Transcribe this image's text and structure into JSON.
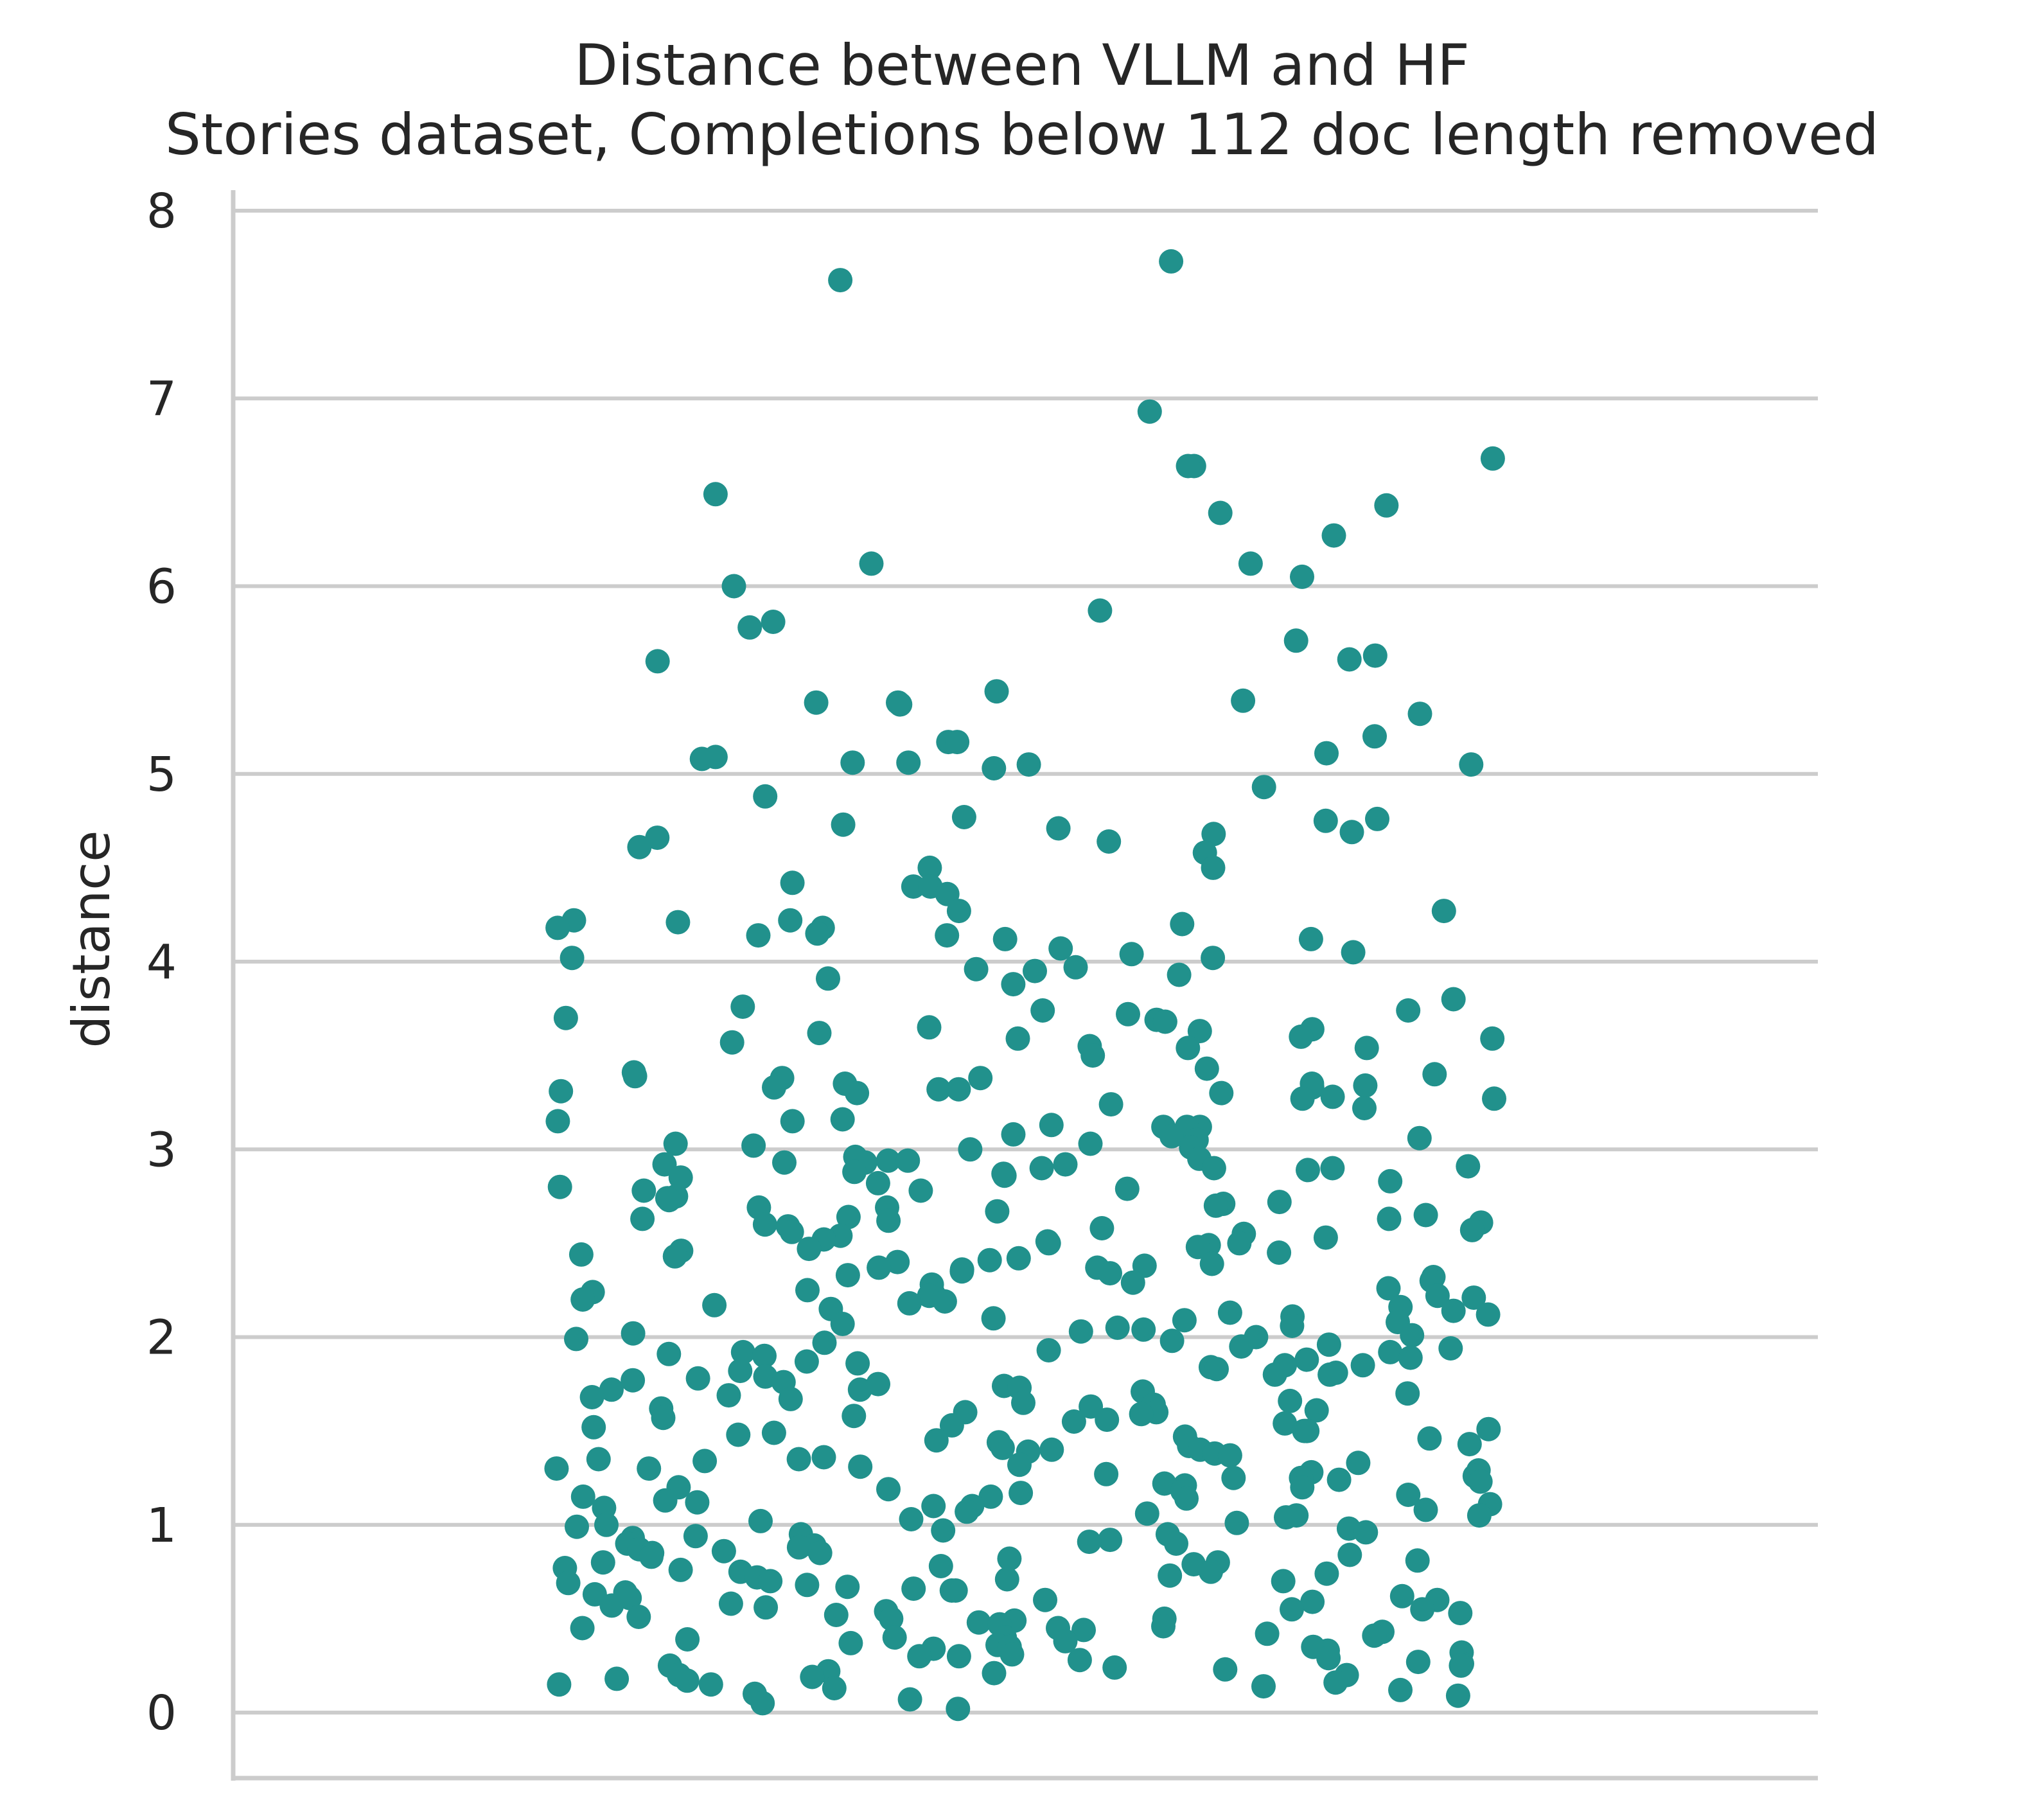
{
  "chart_data": {
    "type": "scatter",
    "subtype": "strip",
    "title": "Distance between VLLM and HF",
    "subtitle": "Stories dataset, Completions below 112 doc length removed",
    "xlabel": "",
    "ylabel": "distance",
    "ylim": [
      -0.35,
      8.1
    ],
    "yticks": [
      "0",
      "1",
      "2",
      "3",
      "4",
      "5",
      "6",
      "7",
      "8"
    ],
    "grid": "horizontal",
    "color": "#21918c",
    "values": [
      7.73,
      7.63,
      6.93,
      6.68,
      6.64,
      6.64,
      6.49,
      6.43,
      6.39,
      6.27,
      6.12,
      6.12,
      6.05,
      6.0,
      5.87,
      5.81,
      5.78,
      5.71,
      5.63,
      5.61,
      5.6,
      5.44,
      5.39,
      5.38,
      5.38,
      5.37,
      5.32,
      5.2,
      5.17,
      5.17,
      5.11,
      5.09,
      5.08,
      5.06,
      5.06,
      5.05,
      5.05,
      5.03,
      4.93,
      4.88,
      4.77,
      4.76,
      4.75,
      4.73,
      4.71,
      4.69,
      4.68,
      4.66,
      4.64,
      4.61,
      4.58,
      4.5,
      4.5,
      4.42,
      4.4,
      4.4,
      4.36,
      4.27,
      4.27,
      4.22,
      4.22,
      4.21,
      4.2,
      4.18,
      4.18,
      4.15,
      4.14,
      4.14,
      4.12,
      4.12,
      4.07,
      4.05,
      4.04,
      4.02,
      4.02,
      3.97,
      3.96,
      3.95,
      3.93,
      3.91,
      3.88,
      3.8,
      3.76,
      3.74,
      3.74,
      3.72,
      3.7,
      3.69,
      3.68,
      3.65,
      3.64,
      3.63,
      3.62,
      3.6,
      3.59,
      3.59,
      3.57,
      3.55,
      3.54,
      3.54,
      3.5,
      3.43,
      3.41,
      3.4,
      3.39,
      3.38,
      3.38,
      3.35,
      3.35,
      3.34,
      3.33,
      3.33,
      3.32,
      3.32,
      3.31,
      3.3,
      3.3,
      3.28,
      3.27,
      3.27,
      3.24,
      3.22,
      3.16,
      3.15,
      3.15,
      3.13,
      3.12,
      3.12,
      3.12,
      3.08,
      3.07,
      3.06,
      3.05,
      3.03,
      3.03,
      3.02,
      3.01,
      3.0,
      2.96,
      2.95,
      2.94,
      2.94,
      2.93,
      2.93,
      2.92,
      2.92,
      2.91,
      2.9,
      2.9,
      2.9,
      2.89,
      2.88,
      2.87,
      2.86,
      2.85,
      2.83,
      2.82,
      2.8,
      2.79,
      2.78,
      2.78,
      2.75,
      2.74,
      2.73,
      2.72,
      2.71,
      2.7,
      2.69,
      2.69,
      2.67,
      2.65,
      2.64,
      2.63,
      2.63,
      2.62,
      2.61,
      2.6,
      2.59,
      2.58,
      2.57,
      2.56,
      2.55,
      2.54,
      2.53,
      2.52,
      2.51,
      2.5,
      2.5,
      2.49,
      2.48,
      2.47,
      2.46,
      2.45,
      2.44,
      2.43,
      2.42,
      2.41,
      2.4,
      2.39,
      2.38,
      2.37,
      2.37,
      2.36,
      2.35,
      2.34,
      2.33,
      2.32,
      2.3,
      2.29,
      2.28,
      2.26,
      2.25,
      2.24,
      2.23,
      2.22,
      2.22,
      2.21,
      2.2,
      2.19,
      2.18,
      2.17,
      2.16,
      2.15,
      2.14,
      2.13,
      2.12,
      2.11,
      2.1,
      2.09,
      2.08,
      2.07,
      2.06,
      2.05,
      2.04,
      2.03,
      2.02,
      2.01,
      2.0,
      1.99,
      1.98,
      1.97,
      1.96,
      1.95,
      1.94,
      1.93,
      1.92,
      1.92,
      1.91,
      1.9,
      1.89,
      1.88,
      1.87,
      1.86,
      1.85,
      1.85,
      1.84,
      1.83,
      1.82,
      1.81,
      1.8,
      1.8,
      1.79,
      1.78,
      1.77,
      1.76,
      1.75,
      1.74,
      1.73,
      1.72,
      1.72,
      1.71,
      1.7,
      1.69,
      1.68,
      1.67,
      1.66,
      1.65,
      1.64,
      1.63,
      1.62,
      1.61,
      1.6,
      1.6,
      1.59,
      1.58,
      1.57,
      1.56,
      1.55,
      1.54,
      1.53,
      1.52,
      1.51,
      1.5,
      1.5,
      1.49,
      1.48,
      1.47,
      1.46,
      1.45,
      1.44,
      1.43,
      1.42,
      1.41,
      1.4,
      1.4,
      1.39,
      1.38,
      1.37,
      1.36,
      1.35,
      1.35,
      1.34,
      1.33,
      1.32,
      1.31,
      1.3,
      1.3,
      1.29,
      1.28,
      1.27,
      1.26,
      1.25,
      1.25,
      1.24,
      1.23,
      1.22,
      1.21,
      1.2,
      1.2,
      1.19,
      1.18,
      1.17,
      1.16,
      1.15,
      1.15,
      1.14,
      1.13,
      1.12,
      1.11,
      1.1,
      1.1,
      1.09,
      1.08,
      1.07,
      1.06,
      1.05,
      1.05,
      1.04,
      1.03,
      1.02,
      1.01,
      1.0,
      0.99,
      0.98,
      0.97,
      0.96,
      0.95,
      0.95,
      0.94,
      0.93,
      0.92,
      0.91,
      0.9,
      0.9,
      0.89,
      0.88,
      0.87,
      0.86,
      0.85,
      0.85,
      0.84,
      0.83,
      0.82,
      0.81,
      0.8,
      0.8,
      0.79,
      0.78,
      0.77,
      0.76,
      0.75,
      0.75,
      0.74,
      0.73,
      0.72,
      0.71,
      0.7,
      0.7,
      0.69,
      0.68,
      0.67,
      0.66,
      0.65,
      0.65,
      0.64,
      0.63,
      0.62,
      0.61,
      0.6,
      0.6,
      0.59,
      0.58,
      0.57,
      0.56,
      0.55,
      0.55,
      0.54,
      0.53,
      0.52,
      0.51,
      0.5,
      0.5,
      0.49,
      0.48,
      0.47,
      0.46,
      0.45,
      0.45,
      0.44,
      0.43,
      0.42,
      0.41,
      0.4,
      0.4,
      0.39,
      0.38,
      0.37,
      0.36,
      0.35,
      0.35,
      0.34,
      0.33,
      0.32,
      0.31,
      0.3,
      0.3,
      0.29,
      0.28,
      0.27,
      0.26,
      0.25,
      0.25,
      0.24,
      0.23,
      0.22,
      0.21,
      0.2,
      0.2,
      0.19,
      0.18,
      0.17,
      0.16,
      0.15,
      0.15,
      0.14,
      0.13,
      0.12,
      0.1,
      0.09,
      0.07,
      0.05,
      0.02
    ]
  }
}
